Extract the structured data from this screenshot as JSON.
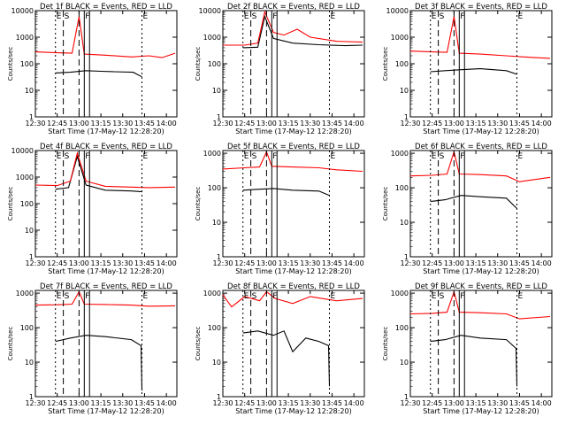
{
  "common": {
    "xlabel": "Start Time (17-May-12 12:28:20)",
    "ylabel": "Counts/sec",
    "marker_letters": [
      "E",
      "S",
      "F",
      "E"
    ]
  },
  "chart_data": [
    {
      "type": "line",
      "title": "Det 1f BLACK = Events, RED = LLD",
      "x_ticks": [
        "12:30",
        "12:45",
        "13:00",
        "13:15",
        "13:30",
        "13:45",
        "14:00"
      ],
      "y_ticks": [
        "1",
        "10",
        "100",
        "1000",
        "10000"
      ],
      "ylim": [
        1,
        10000
      ],
      "yscale": "log",
      "series": [
        {
          "name": "BLACK",
          "color": "#000000",
          "points": [
            [
              12.73,
              45
            ],
            [
              12.9,
              48
            ],
            [
              13.08,
              55
            ],
            [
              13.25,
              52
            ],
            [
              13.4,
              50
            ],
            [
              13.62,
              48
            ],
            [
              13.72,
              32
            ]
          ]
        },
        {
          "name": "RED",
          "color": "#ff0000",
          "points": [
            [
              12.5,
              280
            ],
            [
              12.75,
              260
            ],
            [
              12.92,
              250
            ],
            [
              13.0,
              6000
            ],
            [
              13.06,
              230
            ],
            [
              13.3,
              210
            ],
            [
              13.6,
              180
            ],
            [
              13.8,
              200
            ],
            [
              13.95,
              170
            ],
            [
              14.1,
              250
            ]
          ]
        }
      ]
    },
    {
      "type": "line",
      "title": "Det 2f BLACK = Events, RED = LLD",
      "x_ticks": [
        "12:30",
        "12:45",
        "13:00",
        "13:15",
        "13:30",
        "13:45",
        "14:00"
      ],
      "y_ticks": [
        "1",
        "10",
        "100",
        "1000",
        "10000"
      ],
      "ylim": [
        1,
        10000
      ],
      "yscale": "log",
      "series": [
        {
          "name": "BLACK",
          "color": "#000000",
          "points": [
            [
              12.73,
              400
            ],
            [
              12.9,
              420
            ],
            [
              12.98,
              6000
            ],
            [
              13.08,
              900
            ],
            [
              13.3,
              600
            ],
            [
              13.6,
              520
            ],
            [
              13.9,
              480
            ],
            [
              14.1,
              500
            ]
          ]
        },
        {
          "name": "RED",
          "color": "#ff0000",
          "points": [
            [
              12.5,
              500
            ],
            [
              12.75,
              500
            ],
            [
              12.9,
              600
            ],
            [
              12.98,
              9000
            ],
            [
              13.08,
              1500
            ],
            [
              13.2,
              1200
            ],
            [
              13.35,
              2000
            ],
            [
              13.5,
              1000
            ],
            [
              13.8,
              700
            ],
            [
              14.1,
              650
            ]
          ]
        }
      ]
    },
    {
      "type": "line",
      "title": "Det 3f BLACK = Events, RED = LLD",
      "x_ticks": [
        "12:30",
        "12:45",
        "13:00",
        "13:15",
        "13:30",
        "13:45",
        "14:00"
      ],
      "y_ticks": [
        "1",
        "10",
        "100",
        "1000",
        "10000"
      ],
      "ylim": [
        1,
        10000
      ],
      "yscale": "log",
      "series": [
        {
          "name": "BLACK",
          "color": "#000000",
          "points": [
            [
              12.73,
              50
            ],
            [
              12.9,
              55
            ],
            [
              13.08,
              60
            ],
            [
              13.3,
              65
            ],
            [
              13.6,
              55
            ],
            [
              13.72,
              40
            ]
          ]
        },
        {
          "name": "RED",
          "color": "#ff0000",
          "points": [
            [
              12.5,
              300
            ],
            [
              12.75,
              280
            ],
            [
              12.92,
              270
            ],
            [
              13.0,
              6000
            ],
            [
              13.06,
              250
            ],
            [
              13.3,
              230
            ],
            [
              13.6,
              200
            ],
            [
              13.8,
              180
            ],
            [
              14.1,
              160
            ]
          ]
        }
      ]
    },
    {
      "type": "line",
      "title": "Det 4f BLACK = Events, RED = LLD",
      "x_ticks": [
        "12:30",
        "12:45",
        "13:00",
        "13:15",
        "13:30",
        "13:45",
        "14:00"
      ],
      "y_ticks": [
        "1",
        "10",
        "100",
        "1000",
        "10000"
      ],
      "ylim": [
        1,
        10000
      ],
      "yscale": "log",
      "series": [
        {
          "name": "BLACK",
          "color": "#000000",
          "points": [
            [
              12.73,
              350
            ],
            [
              12.88,
              400
            ],
            [
              12.98,
              6000
            ],
            [
              13.08,
              500
            ],
            [
              13.3,
              320
            ],
            [
              13.6,
              300
            ],
            [
              13.72,
              280
            ]
          ]
        },
        {
          "name": "RED",
          "color": "#ff0000",
          "points": [
            [
              12.5,
              500
            ],
            [
              12.75,
              480
            ],
            [
              12.9,
              700
            ],
            [
              12.98,
              8000
            ],
            [
              13.08,
              700
            ],
            [
              13.3,
              450
            ],
            [
              13.6,
              420
            ],
            [
              13.8,
              400
            ],
            [
              14.1,
              420
            ]
          ]
        }
      ]
    },
    {
      "type": "line",
      "title": "Det 5f BLACK = Events, RED = LLD",
      "x_ticks": [
        "12:30",
        "12:45",
        "13:00",
        "13:15",
        "13:30",
        "13:45",
        "14:00"
      ],
      "y_ticks": [
        "1",
        "10",
        "100",
        "1000"
      ],
      "ylim": [
        1,
        1200
      ],
      "yscale": "log",
      "series": [
        {
          "name": "BLACK",
          "color": "#000000",
          "points": [
            [
              12.73,
              85
            ],
            [
              12.9,
              90
            ],
            [
              13.08,
              95
            ],
            [
              13.3,
              85
            ],
            [
              13.6,
              80
            ],
            [
              13.72,
              60
            ]
          ]
        },
        {
          "name": "RED",
          "color": "#ff0000",
          "points": [
            [
              12.5,
              350
            ],
            [
              12.75,
              380
            ],
            [
              12.92,
              400
            ],
            [
              13.0,
              1100
            ],
            [
              13.06,
              420
            ],
            [
              13.3,
              400
            ],
            [
              13.6,
              380
            ],
            [
              13.8,
              330
            ],
            [
              14.1,
              300
            ]
          ]
        }
      ]
    },
    {
      "type": "line",
      "title": "Det 6f BLACK = Events, RED = LLD",
      "x_ticks": [
        "12:30",
        "12:45",
        "13:00",
        "13:15",
        "13:30",
        "13:45",
        "14:00"
      ],
      "y_ticks": [
        "1",
        "10",
        "100",
        "1000"
      ],
      "ylim": [
        1,
        1200
      ],
      "yscale": "log",
      "series": [
        {
          "name": "BLACK",
          "color": "#000000",
          "points": [
            [
              12.73,
              40
            ],
            [
              12.9,
              45
            ],
            [
              13.08,
              60
            ],
            [
              13.3,
              55
            ],
            [
              13.6,
              50
            ],
            [
              13.72,
              25
            ]
          ]
        },
        {
          "name": "RED",
          "color": "#ff0000",
          "points": [
            [
              12.5,
              220
            ],
            [
              12.75,
              230
            ],
            [
              12.92,
              250
            ],
            [
              13.0,
              1100
            ],
            [
              13.06,
              250
            ],
            [
              13.3,
              240
            ],
            [
              13.6,
              220
            ],
            [
              13.75,
              150
            ],
            [
              14.1,
              200
            ]
          ]
        }
      ]
    },
    {
      "type": "line",
      "title": "Det 7f BLACK = Events, RED = LLD",
      "x_ticks": [
        "12:30",
        "12:45",
        "13:00",
        "13:15",
        "13:30",
        "13:45",
        "14:00"
      ],
      "y_ticks": [
        "1",
        "10",
        "100",
        "1000"
      ],
      "ylim": [
        1,
        1200
      ],
      "yscale": "log",
      "series": [
        {
          "name": "BLACK",
          "color": "#000000",
          "points": [
            [
              12.73,
              40
            ],
            [
              12.9,
              50
            ],
            [
              13.08,
              60
            ],
            [
              13.3,
              55
            ],
            [
              13.6,
              45
            ],
            [
              13.71,
              30
            ],
            [
              13.72,
              1.5
            ]
          ]
        },
        {
          "name": "RED",
          "color": "#ff0000",
          "points": [
            [
              12.5,
              450
            ],
            [
              12.75,
              460
            ],
            [
              12.92,
              480
            ],
            [
              13.0,
              1100
            ],
            [
              13.06,
              480
            ],
            [
              13.3,
              470
            ],
            [
              13.6,
              450
            ],
            [
              13.8,
              420
            ],
            [
              14.1,
              430
            ]
          ]
        }
      ]
    },
    {
      "type": "line",
      "title": "Det 8f BLACK = Events, RED = LLD",
      "x_ticks": [
        "12:30",
        "12:45",
        "13:00",
        "13:15",
        "13:30",
        "13:45",
        "14:00"
      ],
      "y_ticks": [
        "1",
        "10",
        "100",
        "1000"
      ],
      "ylim": [
        1,
        1200
      ],
      "yscale": "log",
      "series": [
        {
          "name": "BLACK",
          "color": "#000000",
          "points": [
            [
              12.73,
              70
            ],
            [
              12.9,
              80
            ],
            [
              13.08,
              60
            ],
            [
              13.2,
              80
            ],
            [
              13.3,
              20
            ],
            [
              13.45,
              50
            ],
            [
              13.6,
              40
            ],
            [
              13.71,
              30
            ],
            [
              13.72,
              2
            ]
          ]
        },
        {
          "name": "RED",
          "color": "#ff0000",
          "points": [
            [
              12.5,
              900
            ],
            [
              12.6,
              400
            ],
            [
              12.75,
              800
            ],
            [
              12.92,
              600
            ],
            [
              13.0,
              1100
            ],
            [
              13.1,
              700
            ],
            [
              13.3,
              500
            ],
            [
              13.5,
              800
            ],
            [
              13.8,
              600
            ],
            [
              14.1,
              700
            ]
          ]
        }
      ]
    },
    {
      "type": "line",
      "title": "Det 9f BLACK = Events, RED = LLD",
      "x_ticks": [
        "12:30",
        "12:45",
        "13:00",
        "13:15",
        "13:30",
        "13:45",
        "14:00"
      ],
      "y_ticks": [
        "1",
        "10",
        "100",
        "1000"
      ],
      "ylim": [
        1,
        1200
      ],
      "yscale": "log",
      "series": [
        {
          "name": "BLACK",
          "color": "#000000",
          "points": [
            [
              12.73,
              40
            ],
            [
              12.9,
              45
            ],
            [
              13.08,
              60
            ],
            [
              13.3,
              50
            ],
            [
              13.6,
              45
            ],
            [
              13.71,
              25
            ],
            [
              13.72,
              2
            ]
          ]
        },
        {
          "name": "RED",
          "color": "#ff0000",
          "points": [
            [
              12.5,
              250
            ],
            [
              12.75,
              260
            ],
            [
              12.92,
              280
            ],
            [
              13.0,
              1100
            ],
            [
              13.06,
              280
            ],
            [
              13.3,
              270
            ],
            [
              13.6,
              250
            ],
            [
              13.75,
              180
            ],
            [
              14.1,
              210
            ]
          ]
        }
      ]
    }
  ]
}
